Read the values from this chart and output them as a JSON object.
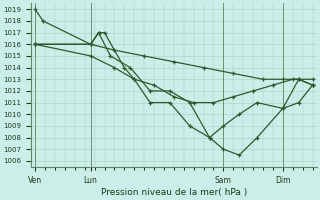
{
  "background_color": "#cceee8",
  "grid_color": "#aacccc",
  "line_color": "#2d5a2d",
  "title": "Pression niveau de la mer( hPa )",
  "ylim": [
    1005.5,
    1019.5
  ],
  "yticks": [
    1006,
    1007,
    1008,
    1009,
    1010,
    1011,
    1012,
    1013,
    1014,
    1015,
    1016,
    1017,
    1018,
    1019
  ],
  "xlim": [
    -0.2,
    14.2
  ],
  "xtick_labels": [
    "Ven",
    "Lun",
    "Sam",
    "Dim"
  ],
  "xtick_pos": [
    0,
    2.8,
    9.5,
    12.5
  ],
  "vline_pos": [
    0,
    2.8,
    9.5,
    12.5
  ],
  "series": [
    {
      "x": [
        0,
        0.4,
        2.8,
        3.2,
        3.5,
        4.5,
        5.0,
        5.8,
        6.8,
        7.8,
        8.8,
        9.5,
        10.3,
        11.2,
        12.5,
        13.3,
        14.0
      ],
      "y": [
        1019,
        1018,
        1016,
        1017,
        1017,
        1014,
        1013,
        1011,
        1011,
        1009,
        1008,
        1007,
        1006.5,
        1008,
        1010.5,
        1011,
        1012.5
      ],
      "style": "solid"
    },
    {
      "x": [
        0,
        2.8,
        3.2,
        3.8,
        4.8,
        5.8,
        6.8,
        7.8,
        8.8,
        9.5,
        10.3,
        11.2,
        12.5,
        13.3,
        14.0
      ],
      "y": [
        1016,
        1016,
        1017,
        1015,
        1014,
        1012,
        1012,
        1011,
        1008,
        1009,
        1010,
        1011,
        1010.5,
        1013,
        1012.5
      ],
      "style": "solid"
    },
    {
      "x": [
        0,
        2.8,
        4.0,
        5.0,
        6.0,
        7.0,
        8.0,
        9.0,
        10.0,
        11.0,
        12.0,
        13.0,
        14.0
      ],
      "y": [
        1016,
        1015,
        1014,
        1013,
        1012.5,
        1011.5,
        1011,
        1011,
        1011.5,
        1012,
        1012.5,
        1013,
        1013
      ],
      "style": "solid"
    },
    {
      "x": [
        0,
        2.8,
        4.0,
        5.5,
        7.0,
        8.5,
        10.0,
        11.5,
        12.5,
        13.3,
        14.0
      ],
      "y": [
        1016,
        1016,
        1015.5,
        1015,
        1014.5,
        1014,
        1013.5,
        1013,
        1013,
        1013,
        1012.5
      ],
      "style": "solid"
    }
  ]
}
